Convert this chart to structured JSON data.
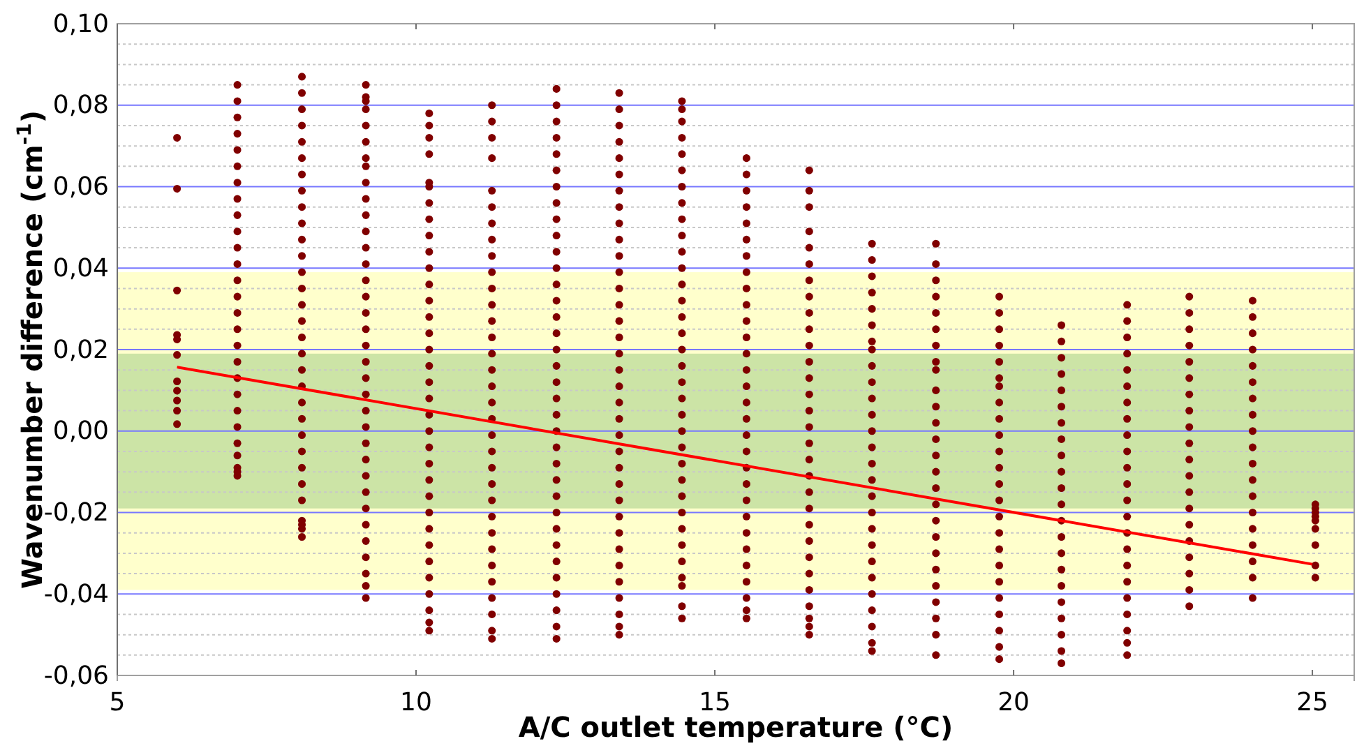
{
  "chart_data": {
    "type": "scatter",
    "xlabel": "A/C outlet temperature (°C)",
    "ylabel": "Wavenumber difference (cm$^{-1}$)",
    "xlim": [
      5,
      25.7
    ],
    "xticks": [
      5,
      10,
      15,
      20,
      25
    ],
    "ylim": [
      -0.06,
      0.1
    ],
    "yticks": [
      {
        "value": -0.06,
        "label": "-0,06"
      },
      {
        "value": -0.055,
        "label": null
      },
      {
        "value": -0.05,
        "label": null
      },
      {
        "value": -0.045,
        "label": null
      },
      {
        "value": -0.04,
        "label": "-0,04"
      },
      {
        "value": -0.035,
        "label": null
      },
      {
        "value": -0.03,
        "label": null
      },
      {
        "value": -0.025,
        "label": null
      },
      {
        "value": -0.02,
        "label": "-0,02"
      },
      {
        "value": -0.015,
        "label": null
      },
      {
        "value": -0.01,
        "label": null
      },
      {
        "value": -0.005,
        "label": null
      },
      {
        "value": 0,
        "label": "0,00"
      },
      {
        "value": 0.005,
        "label": null
      },
      {
        "value": 0.01,
        "label": null
      },
      {
        "value": 0.015,
        "label": null
      },
      {
        "value": 0.02,
        "label": "0,02"
      },
      {
        "value": 0.025,
        "label": null
      },
      {
        "value": 0.03,
        "label": null
      },
      {
        "value": 0.035,
        "label": null
      },
      {
        "value": 0.04,
        "label": "0,04"
      },
      {
        "value": 0.045,
        "label": null
      },
      {
        "value": 0.05,
        "label": null
      },
      {
        "value": 0.055,
        "label": null
      },
      {
        "value": 0.06,
        "label": "0,06"
      },
      {
        "value": 0.065,
        "label": null
      },
      {
        "value": 0.07,
        "label": null
      },
      {
        "value": 0.075,
        "label": null
      },
      {
        "value": 0.08,
        "label": "0,08"
      },
      {
        "value": 0.085,
        "label": null
      },
      {
        "value": 0.09,
        "label": null
      },
      {
        "value": 0.095,
        "label": null
      },
      {
        "value": 0.1,
        "label": "0,10"
      }
    ],
    "grid": "y",
    "marker": "circle",
    "bands": [
      {
        "axis": "y",
        "from": -0.039,
        "to": 0.039,
        "color": "#ffffcc"
      },
      {
        "axis": "y",
        "from": -0.019,
        "to": 0.019,
        "color": "#cce4a6"
      }
    ],
    "series": [
      {
        "color": "#800000",
        "x": [
          6,
          6,
          6,
          6,
          6,
          6,
          6,
          6,
          6,
          6,
          6
        ],
        "values": [
          0.072,
          0.0595,
          0.0345,
          0.0236,
          0.0225,
          0.0187,
          0.0122,
          0.0099,
          0.0075,
          0.005,
          0.0017
        ]
      },
      {
        "color": "#800000",
        "x": [
          7.01,
          7.01,
          7.01,
          7.01,
          7.01,
          7.01,
          7.01,
          7.01,
          7.01,
          7.01,
          7.01,
          7.01,
          7.01,
          7.01,
          7.01,
          7.01,
          7.01,
          7.01,
          7.01,
          7.01,
          7.01,
          7.01,
          7.01,
          7.01,
          7.01,
          7.01,
          7.01
        ],
        "values": [
          0.085,
          0.081,
          0.077,
          0.073,
          0.069,
          0.065,
          0.061,
          0.057,
          0.053,
          0.049,
          0.045,
          0.041,
          0.037,
          0.033,
          0.029,
          0.025,
          0.021,
          0.017,
          0.013,
          0.009,
          0.005,
          0.001,
          -0.003,
          -0.006,
          -0.009,
          -0.01,
          -0.011
        ]
      },
      {
        "color": "#800000",
        "x": [
          8.09,
          8.09,
          8.09,
          8.09,
          8.09,
          8.09,
          8.09,
          8.09,
          8.09,
          8.09,
          8.09,
          8.09,
          8.09,
          8.09,
          8.09,
          8.09,
          8.09,
          8.09,
          8.09,
          8.09,
          8.09,
          8.09,
          8.09,
          8.09,
          8.09,
          8.09,
          8.09,
          8.09,
          8.09,
          8.09,
          8.09
        ],
        "values": [
          0.087,
          0.083,
          0.079,
          0.075,
          0.071,
          0.067,
          0.063,
          0.059,
          0.055,
          0.051,
          0.047,
          0.043,
          0.039,
          0.035,
          0.031,
          0.027,
          0.023,
          0.019,
          0.015,
          0.011,
          0.007,
          0.003,
          -0.001,
          -0.005,
          -0.009,
          -0.013,
          -0.017,
          -0.022,
          -0.023,
          -0.024,
          -0.026
        ]
      },
      {
        "color": "#800000",
        "x": [
          9.16,
          9.16,
          9.16,
          9.16,
          9.16,
          9.16,
          9.16,
          9.16,
          9.16,
          9.16,
          9.16,
          9.16,
          9.16,
          9.16,
          9.16,
          9.16,
          9.16,
          9.16,
          9.16,
          9.16,
          9.16,
          9.16,
          9.16,
          9.16,
          9.16,
          9.16,
          9.16,
          9.16,
          9.16,
          9.16,
          9.16,
          9.16,
          9.16,
          9.16,
          9.16
        ],
        "values": [
          0.085,
          0.082,
          0.081,
          0.079,
          0.075,
          0.071,
          0.067,
          0.065,
          0.061,
          0.057,
          0.053,
          0.049,
          0.045,
          0.041,
          0.037,
          0.033,
          0.029,
          0.025,
          0.021,
          0.017,
          0.013,
          0.009,
          0.005,
          0.001,
          -0.003,
          -0.007,
          -0.011,
          -0.015,
          -0.019,
          -0.023,
          -0.027,
          -0.031,
          -0.035,
          -0.038,
          -0.041
        ]
      },
      {
        "color": "#800000",
        "x": [
          10.22,
          10.22,
          10.22,
          10.22,
          10.22,
          10.22,
          10.22,
          10.22,
          10.22,
          10.22,
          10.22,
          10.22,
          10.22,
          10.22,
          10.22,
          10.22,
          10.22,
          10.22,
          10.22,
          10.22,
          10.22,
          10.22,
          10.22,
          10.22,
          10.22,
          10.22,
          10.22,
          10.22,
          10.22,
          10.22,
          10.22,
          10.22,
          10.22,
          10.22
        ],
        "values": [
          0.078,
          0.075,
          0.072,
          0.068,
          0.061,
          0.06,
          0.056,
          0.052,
          0.048,
          0.044,
          0.04,
          0.036,
          0.032,
          0.028,
          0.024,
          0.02,
          0.016,
          0.012,
          0.008,
          0.004,
          0,
          -0.004,
          -0.008,
          -0.012,
          -0.016,
          -0.02,
          -0.024,
          -0.028,
          -0.032,
          -0.036,
          -0.04,
          -0.044,
          -0.047,
          -0.049
        ]
      },
      {
        "color": "#800000",
        "x": [
          11.27,
          11.27,
          11.27,
          11.27,
          11.27,
          11.27,
          11.27,
          11.27,
          11.27,
          11.27,
          11.27,
          11.27,
          11.27,
          11.27,
          11.27,
          11.27,
          11.27,
          11.27,
          11.27,
          11.27,
          11.27,
          11.27,
          11.27,
          11.27,
          11.27,
          11.27,
          11.27,
          11.27,
          11.27,
          11.27,
          11.27,
          11.27,
          11.27
        ],
        "values": [
          0.08,
          0.076,
          0.072,
          0.067,
          0.059,
          0.055,
          0.051,
          0.047,
          0.043,
          0.039,
          0.035,
          0.031,
          0.027,
          0.023,
          0.019,
          0.015,
          0.011,
          0.007,
          0.003,
          -0.001,
          -0.005,
          -0.009,
          -0.013,
          -0.017,
          -0.021,
          -0.025,
          -0.029,
          -0.033,
          -0.037,
          -0.041,
          -0.045,
          -0.049,
          -0.051
        ]
      },
      {
        "color": "#800000",
        "x": [
          12.35,
          12.35,
          12.35,
          12.35,
          12.35,
          12.35,
          12.35,
          12.35,
          12.35,
          12.35,
          12.35,
          12.35,
          12.35,
          12.35,
          12.35,
          12.35,
          12.35,
          12.35,
          12.35,
          12.35,
          12.35,
          12.35,
          12.35,
          12.35,
          12.35,
          12.35,
          12.35,
          12.35,
          12.35,
          12.35,
          12.35,
          12.35,
          12.35,
          12.35,
          12.35
        ],
        "values": [
          0.084,
          0.08,
          0.076,
          0.072,
          0.068,
          0.064,
          0.06,
          0.056,
          0.052,
          0.048,
          0.044,
          0.04,
          0.036,
          0.032,
          0.028,
          0.024,
          0.02,
          0.016,
          0.012,
          0.008,
          0.004,
          0,
          -0.004,
          -0.008,
          -0.012,
          -0.016,
          -0.02,
          -0.024,
          -0.028,
          -0.032,
          -0.036,
          -0.04,
          -0.044,
          -0.048,
          -0.051
        ]
      },
      {
        "color": "#800000",
        "x": [
          13.4,
          13.4,
          13.4,
          13.4,
          13.4,
          13.4,
          13.4,
          13.4,
          13.4,
          13.4,
          13.4,
          13.4,
          13.4,
          13.4,
          13.4,
          13.4,
          13.4,
          13.4,
          13.4,
          13.4,
          13.4,
          13.4,
          13.4,
          13.4,
          13.4,
          13.4,
          13.4,
          13.4,
          13.4,
          13.4,
          13.4,
          13.4,
          13.4,
          13.4,
          13.4
        ],
        "values": [
          0.083,
          0.079,
          0.075,
          0.071,
          0.067,
          0.063,
          0.059,
          0.055,
          0.051,
          0.047,
          0.043,
          0.039,
          0.035,
          0.031,
          0.027,
          0.023,
          0.019,
          0.015,
          0.011,
          0.007,
          0.003,
          -0.001,
          -0.005,
          -0.009,
          -0.013,
          -0.017,
          -0.021,
          -0.025,
          -0.029,
          -0.033,
          -0.037,
          -0.041,
          -0.045,
          -0.048,
          -0.05
        ]
      },
      {
        "color": "#800000",
        "x": [
          14.45,
          14.45,
          14.45,
          14.45,
          14.45,
          14.45,
          14.45,
          14.45,
          14.45,
          14.45,
          14.45,
          14.45,
          14.45,
          14.45,
          14.45,
          14.45,
          14.45,
          14.45,
          14.45,
          14.45,
          14.45,
          14.45,
          14.45,
          14.45,
          14.45,
          14.45,
          14.45,
          14.45,
          14.45,
          14.45,
          14.45,
          14.45,
          14.45,
          14.45
        ],
        "values": [
          0.081,
          0.079,
          0.076,
          0.072,
          0.068,
          0.064,
          0.06,
          0.056,
          0.052,
          0.048,
          0.044,
          0.04,
          0.036,
          0.032,
          0.028,
          0.024,
          0.02,
          0.016,
          0.012,
          0.008,
          0.004,
          0,
          -0.004,
          -0.008,
          -0.012,
          -0.016,
          -0.02,
          -0.024,
          -0.028,
          -0.032,
          -0.036,
          -0.038,
          -0.043,
          -0.046
        ]
      },
      {
        "color": "#800000",
        "x": [
          15.53,
          15.53,
          15.53,
          15.53,
          15.53,
          15.53,
          15.53,
          15.53,
          15.53,
          15.53,
          15.53,
          15.53,
          15.53,
          15.53,
          15.53,
          15.53,
          15.53,
          15.53,
          15.53,
          15.53,
          15.53,
          15.53,
          15.53,
          15.53,
          15.53,
          15.53,
          15.53,
          15.53,
          15.53,
          15.53
        ],
        "values": [
          0.067,
          0.063,
          0.059,
          0.055,
          0.051,
          0.047,
          0.043,
          0.039,
          0.035,
          0.031,
          0.027,
          0.023,
          0.019,
          0.015,
          0.011,
          0.007,
          0.003,
          -0.001,
          -0.005,
          -0.009,
          -0.013,
          -0.017,
          -0.021,
          -0.025,
          -0.029,
          -0.033,
          -0.037,
          -0.041,
          -0.044,
          -0.046
        ]
      },
      {
        "color": "#800000",
        "x": [
          16.58,
          16.58,
          16.58,
          16.58,
          16.58,
          16.58,
          16.58,
          16.58,
          16.58,
          16.58,
          16.58,
          16.58,
          16.58,
          16.58,
          16.58,
          16.58,
          16.58,
          16.58,
          16.58,
          16.58,
          16.58,
          16.58,
          16.58,
          16.58,
          16.58,
          16.58,
          16.58,
          16.58,
          16.58,
          16.58
        ],
        "values": [
          0.064,
          0.059,
          0.055,
          0.049,
          0.045,
          0.041,
          0.037,
          0.033,
          0.029,
          0.025,
          0.021,
          0.017,
          0.013,
          0.009,
          0.005,
          0.001,
          -0.003,
          -0.007,
          -0.011,
          -0.015,
          -0.019,
          -0.023,
          -0.027,
          -0.031,
          -0.035,
          -0.039,
          -0.043,
          -0.046,
          -0.048,
          -0.05
        ]
      },
      {
        "color": "#800000",
        "x": [
          17.63,
          17.63,
          17.63,
          17.63,
          17.63,
          17.63,
          17.63,
          17.63,
          17.63,
          17.63,
          17.63,
          17.63,
          17.63,
          17.63,
          17.63,
          17.63,
          17.63,
          17.63,
          17.63,
          17.63,
          17.63,
          17.63,
          17.63,
          17.63,
          17.63,
          17.63,
          17.63
        ],
        "values": [
          0.046,
          0.042,
          0.038,
          0.034,
          0.03,
          0.026,
          0.022,
          0.02,
          0.016,
          0.012,
          0.008,
          0.004,
          0,
          -0.004,
          -0.008,
          -0.012,
          -0.016,
          -0.02,
          -0.024,
          -0.028,
          -0.032,
          -0.036,
          -0.04,
          -0.044,
          -0.048,
          -0.052,
          -0.054
        ]
      },
      {
        "color": "#800000",
        "x": [
          18.7,
          18.7,
          18.7,
          18.7,
          18.7,
          18.7,
          18.7,
          18.7,
          18.7,
          18.7,
          18.7,
          18.7,
          18.7,
          18.7,
          18.7,
          18.7,
          18.7,
          18.7,
          18.7,
          18.7,
          18.7,
          18.7,
          18.7,
          18.7,
          18.7,
          18.7
        ],
        "values": [
          0.046,
          0.041,
          0.037,
          0.033,
          0.029,
          0.025,
          0.021,
          0.017,
          0.015,
          0.01,
          0.006,
          0.002,
          -0.002,
          -0.006,
          -0.01,
          -0.014,
          -0.018,
          -0.022,
          -0.026,
          -0.03,
          -0.034,
          -0.038,
          -0.042,
          -0.046,
          -0.05,
          -0.055
        ]
      },
      {
        "color": "#800000",
        "x": [
          19.76,
          19.76,
          19.76,
          19.76,
          19.76,
          19.76,
          19.76,
          19.76,
          19.76,
          19.76,
          19.76,
          19.76,
          19.76,
          19.76,
          19.76,
          19.76,
          19.76,
          19.76,
          19.76,
          19.76,
          19.76,
          19.76,
          19.76,
          19.76
        ],
        "values": [
          0.033,
          0.029,
          0.025,
          0.021,
          0.017,
          0.013,
          0.011,
          0.007,
          0.003,
          -0.001,
          -0.005,
          -0.009,
          -0.013,
          -0.017,
          -0.021,
          -0.025,
          -0.029,
          -0.033,
          -0.037,
          -0.041,
          -0.045,
          -0.049,
          -0.053,
          -0.056
        ]
      },
      {
        "color": "#800000",
        "x": [
          20.8,
          20.8,
          20.8,
          20.8,
          20.8,
          20.8,
          20.8,
          20.8,
          20.8,
          20.8,
          20.8,
          20.8,
          20.8,
          20.8,
          20.8,
          20.8,
          20.8,
          20.8,
          20.8,
          20.8,
          20.8,
          20.8
        ],
        "values": [
          0.026,
          0.022,
          0.018,
          0.014,
          0.01,
          0.006,
          0.002,
          -0.002,
          -0.006,
          -0.01,
          -0.014,
          -0.018,
          -0.022,
          -0.026,
          -0.03,
          -0.034,
          -0.038,
          -0.042,
          -0.046,
          -0.05,
          -0.054,
          -0.057
        ]
      },
      {
        "color": "#800000",
        "x": [
          21.9,
          21.9,
          21.9,
          21.9,
          21.9,
          21.9,
          21.9,
          21.9,
          21.9,
          21.9,
          21.9,
          21.9,
          21.9,
          21.9,
          21.9,
          21.9,
          21.9,
          21.9,
          21.9,
          21.9,
          21.9,
          21.9,
          21.9
        ],
        "values": [
          0.031,
          0.027,
          0.023,
          0.019,
          0.015,
          0.011,
          0.007,
          0.003,
          -0.001,
          -0.005,
          -0.009,
          -0.013,
          -0.017,
          -0.021,
          -0.025,
          -0.029,
          -0.033,
          -0.037,
          -0.041,
          -0.045,
          -0.049,
          -0.052,
          -0.055
        ]
      },
      {
        "color": "#800000",
        "x": [
          22.94,
          22.94,
          22.94,
          22.94,
          22.94,
          22.94,
          22.94,
          22.94,
          22.94,
          22.94,
          22.94,
          22.94,
          22.94,
          22.94,
          22.94,
          22.94,
          22.94,
          22.94,
          22.94,
          22.94
        ],
        "values": [
          0.033,
          0.029,
          0.025,
          0.021,
          0.017,
          0.013,
          0.009,
          0.005,
          0.001,
          -0.003,
          -0.007,
          -0.011,
          -0.015,
          -0.019,
          -0.023,
          -0.027,
          -0.031,
          -0.035,
          -0.039,
          -0.043
        ]
      },
      {
        "color": "#800000",
        "x": [
          24,
          24,
          24,
          24,
          24,
          24,
          24,
          24,
          24,
          24,
          24,
          24,
          24,
          24,
          24,
          24,
          24,
          24,
          24
        ],
        "values": [
          0.032,
          0.028,
          0.024,
          0.02,
          0.016,
          0.012,
          0.008,
          0.004,
          0,
          -0.004,
          -0.008,
          -0.012,
          -0.016,
          -0.02,
          -0.024,
          -0.028,
          -0.032,
          -0.036,
          -0.041
        ]
      },
      {
        "color": "#800000",
        "x": [
          25.05,
          25.05,
          25.05,
          25.05,
          25.05,
          25.05,
          25.05,
          25.05,
          25.05
        ],
        "values": [
          -0.018,
          -0.019,
          -0.02,
          -0.021,
          -0.022,
          -0.024,
          -0.028,
          -0.033,
          -0.036
        ]
      },
      {
        "type": "line",
        "color": "#ff0000",
        "marker": "none",
        "x": [
          6,
          25
        ],
        "values": [
          0.0157,
          -0.0327
        ]
      }
    ]
  }
}
